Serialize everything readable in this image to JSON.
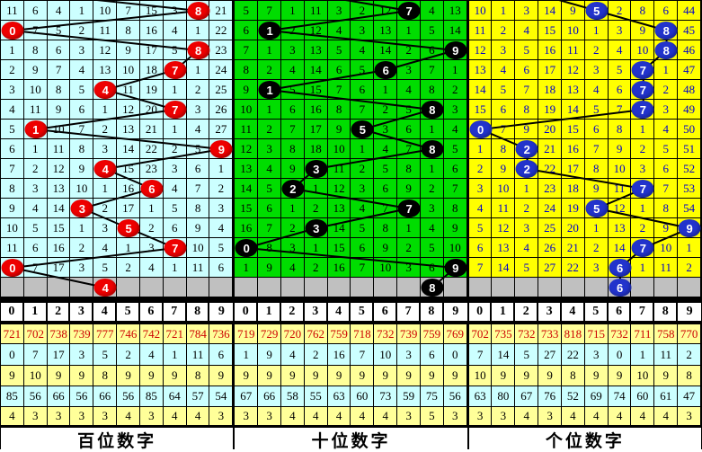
{
  "chart_data": {
    "type": "line",
    "description": "3D lottery digit trend chart with missing-value counts; three panels of 14 draws plus one predicted (gray) row; ball column equals drawn digit 0-9",
    "panels_order": [
      "百位数字",
      "十位数字",
      "个位数字"
    ],
    "series": [
      {
        "name": "百位数字",
        "drawn_digits": [
          8,
          0,
          8,
          7,
          4,
          7,
          1,
          9,
          4,
          6,
          3,
          5,
          7,
          0,
          4
        ]
      },
      {
        "name": "十位数字",
        "drawn_digits": [
          7,
          1,
          9,
          6,
          1,
          8,
          5,
          8,
          3,
          2,
          7,
          3,
          0,
          9,
          8
        ]
      },
      {
        "name": "个位数字",
        "drawn_digits": [
          5,
          8,
          8,
          7,
          7,
          7,
          0,
          2,
          2,
          7,
          5,
          9,
          7,
          6,
          6
        ]
      }
    ]
  },
  "panels": [
    {
      "name": "hundreds",
      "label": "百位数字",
      "colors": {
        "cell_bg": "#CCFFFF",
        "cell_text": "#000000",
        "ball": "#EE0000"
      },
      "header": [
        "0",
        "1",
        "2",
        "3",
        "4",
        "5",
        "6",
        "7",
        "8",
        "9"
      ],
      "rows": [
        [
          "11",
          "6",
          "4",
          "1",
          "10",
          "7",
          "15",
          "3",
          "",
          "21"
        ],
        [
          "",
          "7",
          "5",
          "2",
          "11",
          "8",
          "16",
          "4",
          "1",
          "22"
        ],
        [
          "1",
          "8",
          "6",
          "3",
          "12",
          "9",
          "17",
          "5",
          "",
          "23"
        ],
        [
          "2",
          "9",
          "7",
          "4",
          "13",
          "10",
          "18",
          "",
          "1",
          "24"
        ],
        [
          "3",
          "10",
          "8",
          "5",
          "",
          "11",
          "19",
          "1",
          "2",
          "25"
        ],
        [
          "4",
          "11",
          "9",
          "6",
          "1",
          "12",
          "20",
          "",
          "3",
          "26"
        ],
        [
          "5",
          "",
          "10",
          "7",
          "2",
          "13",
          "21",
          "1",
          "4",
          "27"
        ],
        [
          "6",
          "1",
          "11",
          "8",
          "3",
          "14",
          "22",
          "2",
          "5",
          ""
        ],
        [
          "7",
          "2",
          "12",
          "9",
          "",
          "15",
          "23",
          "3",
          "6",
          "1"
        ],
        [
          "8",
          "3",
          "13",
          "10",
          "1",
          "16",
          "",
          "4",
          "7",
          "2"
        ],
        [
          "9",
          "4",
          "14",
          "",
          "2",
          "17",
          "1",
          "5",
          "8",
          "3"
        ],
        [
          "10",
          "5",
          "15",
          "1",
          "3",
          "",
          "2",
          "6",
          "9",
          "4"
        ],
        [
          "11",
          "6",
          "16",
          "2",
          "4",
          "1",
          "3",
          "",
          "10",
          "5"
        ],
        [
          "",
          "7",
          "17",
          "3",
          "5",
          "2",
          "4",
          "1",
          "11",
          "6"
        ],
        [
          "",
          "",
          "",
          "",
          "",
          "",
          "",
          "",
          "",
          ""
        ]
      ],
      "balls": [
        {
          "row": 0,
          "col": 8,
          "value": "8"
        },
        {
          "row": 1,
          "col": 0,
          "value": "0"
        },
        {
          "row": 2,
          "col": 8,
          "value": "8"
        },
        {
          "row": 3,
          "col": 7,
          "value": "7"
        },
        {
          "row": 4,
          "col": 4,
          "value": "4"
        },
        {
          "row": 5,
          "col": 7,
          "value": "7"
        },
        {
          "row": 6,
          "col": 1,
          "value": "1"
        },
        {
          "row": 7,
          "col": 9,
          "value": "9"
        },
        {
          "row": 8,
          "col": 4,
          "value": "4"
        },
        {
          "row": 9,
          "col": 6,
          "value": "6"
        },
        {
          "row": 10,
          "col": 3,
          "value": "3"
        },
        {
          "row": 11,
          "col": 5,
          "value": "5"
        },
        {
          "row": 12,
          "col": 7,
          "value": "7"
        },
        {
          "row": 13,
          "col": 0,
          "value": "0"
        },
        {
          "row": 14,
          "col": 4,
          "value": "4"
        }
      ],
      "entry": [
        13,
        -11
      ],
      "stats": [
        [
          "721",
          "702",
          "738",
          "739",
          "777",
          "746",
          "742",
          "721",
          "784",
          "736"
        ],
        [
          "0",
          "7",
          "17",
          "3",
          "5",
          "2",
          "4",
          "1",
          "11",
          "6"
        ],
        [
          "9",
          "10",
          "9",
          "9",
          "8",
          "9",
          "9",
          "9",
          "8",
          "9"
        ],
        [
          "85",
          "56",
          "66",
          "56",
          "66",
          "56",
          "85",
          "64",
          "57",
          "54"
        ],
        [
          "4",
          "3",
          "3",
          "3",
          "3",
          "4",
          "3",
          "4",
          "4",
          "3"
        ]
      ]
    },
    {
      "name": "tens",
      "label": "十位数字",
      "colors": {
        "cell_bg": "#00DD00",
        "cell_text": "#000000",
        "ball": "#000000"
      },
      "header": [
        "0",
        "1",
        "2",
        "3",
        "4",
        "5",
        "6",
        "7",
        "8",
        "9"
      ],
      "rows": [
        [
          "5",
          "7",
          "1",
          "11",
          "3",
          "2",
          "12",
          "",
          "4",
          "13"
        ],
        [
          "6",
          "",
          "2",
          "12",
          "4",
          "3",
          "13",
          "1",
          "5",
          "14"
        ],
        [
          "7",
          "1",
          "3",
          "13",
          "5",
          "4",
          "14",
          "2",
          "6",
          ""
        ],
        [
          "8",
          "2",
          "4",
          "14",
          "6",
          "5",
          "",
          "3",
          "7",
          "1"
        ],
        [
          "9",
          "",
          "5",
          "15",
          "7",
          "6",
          "1",
          "4",
          "8",
          "2"
        ],
        [
          "10",
          "1",
          "6",
          "16",
          "8",
          "7",
          "2",
          "5",
          "",
          "3"
        ],
        [
          "11",
          "2",
          "7",
          "17",
          "9",
          "",
          "3",
          "6",
          "1",
          "4"
        ],
        [
          "12",
          "3",
          "8",
          "18",
          "10",
          "1",
          "4",
          "7",
          "",
          "5"
        ],
        [
          "13",
          "4",
          "9",
          "",
          "11",
          "2",
          "5",
          "8",
          "1",
          "6"
        ],
        [
          "14",
          "5",
          "",
          "1",
          "12",
          "3",
          "6",
          "9",
          "2",
          "7"
        ],
        [
          "15",
          "6",
          "1",
          "2",
          "13",
          "4",
          "7",
          "",
          "3",
          "8"
        ],
        [
          "16",
          "7",
          "2",
          "",
          "14",
          "5",
          "8",
          "1",
          "4",
          "9"
        ],
        [
          "",
          "8",
          "3",
          "1",
          "15",
          "6",
          "9",
          "2",
          "5",
          "10"
        ],
        [
          "1",
          "9",
          "4",
          "2",
          "16",
          "7",
          "10",
          "3",
          "6",
          ""
        ],
        [
          "",
          "",
          "",
          "",
          "",
          "",
          "",
          "",
          "",
          ""
        ]
      ],
      "balls": [
        {
          "row": 0,
          "col": 7,
          "value": "7"
        },
        {
          "row": 1,
          "col": 1,
          "value": "1"
        },
        {
          "row": 2,
          "col": 9,
          "value": "9"
        },
        {
          "row": 3,
          "col": 6,
          "value": "6"
        },
        {
          "row": 4,
          "col": 1,
          "value": "1"
        },
        {
          "row": 5,
          "col": 8,
          "value": "8"
        },
        {
          "row": 6,
          "col": 5,
          "value": "5"
        },
        {
          "row": 7,
          "col": 8,
          "value": "8"
        },
        {
          "row": 8,
          "col": 3,
          "value": "3"
        },
        {
          "row": 9,
          "col": 2,
          "value": "2"
        },
        {
          "row": 10,
          "col": 7,
          "value": "7"
        },
        {
          "row": 11,
          "col": 3,
          "value": "3"
        },
        {
          "row": 12,
          "col": 0,
          "value": "0"
        },
        {
          "row": 13,
          "col": 9,
          "value": "9"
        },
        {
          "row": 14,
          "col": 8,
          "value": "8"
        }
      ],
      "entry": [
        65,
        -11
      ],
      "stats": [
        [
          "719",
          "729",
          "720",
          "762",
          "759",
          "718",
          "732",
          "739",
          "759",
          "769"
        ],
        [
          "1",
          "9",
          "4",
          "2",
          "16",
          "7",
          "10",
          "3",
          "6",
          "0"
        ],
        [
          "9",
          "9",
          "9",
          "9",
          "9",
          "9",
          "9",
          "9",
          "9",
          "9"
        ],
        [
          "67",
          "66",
          "58",
          "55",
          "63",
          "60",
          "73",
          "59",
          "75",
          "56"
        ],
        [
          "3",
          "3",
          "4",
          "4",
          "4",
          "4",
          "4",
          "3",
          "5",
          "3"
        ]
      ]
    },
    {
      "name": "units",
      "label": "个位数字",
      "colors": {
        "cell_bg": "#FFFF00",
        "cell_text": "#0000CC",
        "ball": "#2233CC"
      },
      "header": [
        "0",
        "1",
        "2",
        "3",
        "4",
        "5",
        "6",
        "7",
        "8",
        "9"
      ],
      "rows": [
        [
          "10",
          "1",
          "3",
          "14",
          "9",
          "",
          "2",
          "8",
          "6",
          "44"
        ],
        [
          "11",
          "2",
          "4",
          "15",
          "10",
          "1",
          "3",
          "9",
          "",
          "45"
        ],
        [
          "12",
          "3",
          "5",
          "16",
          "11",
          "2",
          "4",
          "10",
          "",
          "46"
        ],
        [
          "13",
          "4",
          "6",
          "17",
          "12",
          "3",
          "5",
          "",
          "1",
          "47"
        ],
        [
          "14",
          "5",
          "7",
          "18",
          "13",
          "4",
          "6",
          "",
          "2",
          "48"
        ],
        [
          "15",
          "6",
          "8",
          "19",
          "14",
          "5",
          "7",
          "",
          "3",
          "49"
        ],
        [
          "",
          "7",
          "9",
          "20",
          "15",
          "6",
          "8",
          "1",
          "4",
          "50"
        ],
        [
          "1",
          "8",
          "",
          "21",
          "16",
          "7",
          "9",
          "2",
          "5",
          "51"
        ],
        [
          "2",
          "9",
          "",
          "22",
          "17",
          "8",
          "10",
          "3",
          "6",
          "52"
        ],
        [
          "3",
          "10",
          "1",
          "23",
          "18",
          "9",
          "11",
          "",
          "7",
          "53"
        ],
        [
          "4",
          "11",
          "2",
          "24",
          "19",
          "",
          "12",
          "1",
          "8",
          "54"
        ],
        [
          "5",
          "12",
          "3",
          "25",
          "20",
          "1",
          "13",
          "2",
          "9",
          ""
        ],
        [
          "6",
          "13",
          "4",
          "26",
          "21",
          "2",
          "14",
          "",
          "10",
          "1"
        ],
        [
          "7",
          "14",
          "5",
          "27",
          "22",
          "3",
          "",
          "1",
          "11",
          "2"
        ],
        [
          "",
          "",
          "",
          "",
          "",
          "",
          "",
          "",
          "",
          ""
        ]
      ],
      "balls": [
        {
          "row": 0,
          "col": 5,
          "value": "5"
        },
        {
          "row": 1,
          "col": 8,
          "value": "8"
        },
        {
          "row": 2,
          "col": 8,
          "value": "8"
        },
        {
          "row": 3,
          "col": 7,
          "value": "7"
        },
        {
          "row": 4,
          "col": 7,
          "value": "7"
        },
        {
          "row": 5,
          "col": 7,
          "value": "7"
        },
        {
          "row": 6,
          "col": 0,
          "value": "0"
        },
        {
          "row": 7,
          "col": 2,
          "value": "2"
        },
        {
          "row": 8,
          "col": 2,
          "value": "2"
        },
        {
          "row": 9,
          "col": 7,
          "value": "7"
        },
        {
          "row": 10,
          "col": 5,
          "value": "5"
        },
        {
          "row": 11,
          "col": 9,
          "value": "9"
        },
        {
          "row": 12,
          "col": 7,
          "value": "7"
        },
        {
          "row": 13,
          "col": 6,
          "value": "6"
        },
        {
          "row": 14,
          "col": 6,
          "value": "6"
        }
      ],
      "entry": [
        65,
        -11
      ],
      "stats": [
        [
          "702",
          "735",
          "732",
          "733",
          "818",
          "715",
          "732",
          "711",
          "758",
          "770"
        ],
        [
          "7",
          "14",
          "5",
          "27",
          "22",
          "3",
          "0",
          "1",
          "11",
          "2"
        ],
        [
          "10",
          "9",
          "9",
          "9",
          "8",
          "9",
          "9",
          "10",
          "9",
          "8"
        ],
        [
          "63",
          "80",
          "67",
          "76",
          "52",
          "69",
          "74",
          "60",
          "61",
          "47"
        ],
        [
          "3",
          "3",
          "4",
          "3",
          "4",
          "4",
          "4",
          "4",
          "4",
          "3"
        ]
      ]
    }
  ]
}
